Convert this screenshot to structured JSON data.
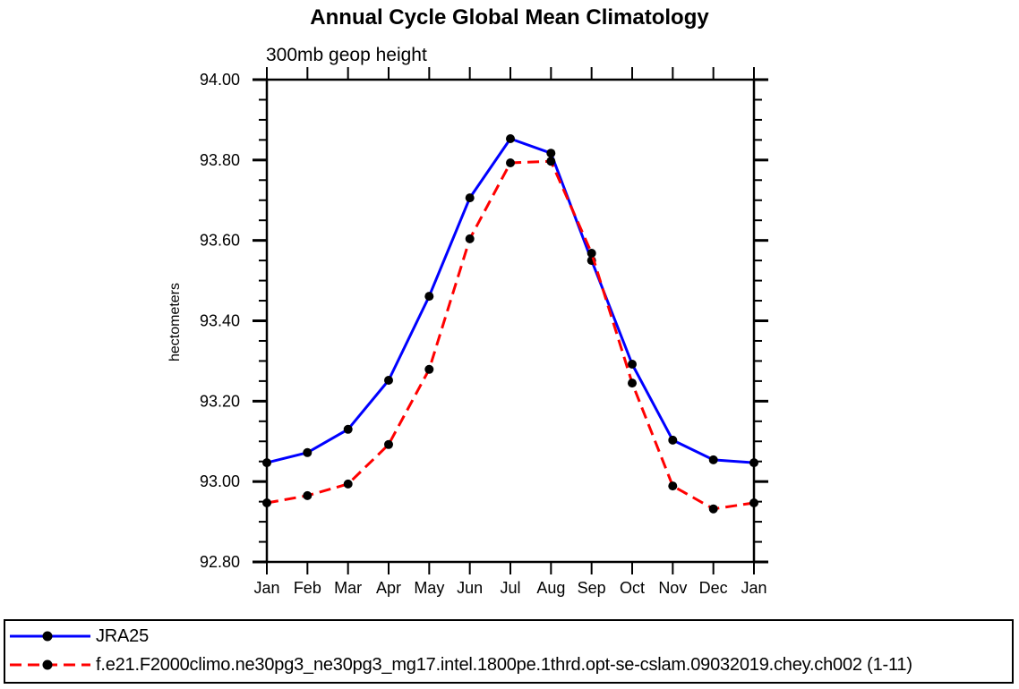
{
  "chart_data": {
    "type": "line",
    "title": "Annual Cycle Global Mean Climatology",
    "subtitle": "300mb geop height",
    "ylabel": "hectometers",
    "xlabel": "",
    "categories": [
      "Jan",
      "Feb",
      "Mar",
      "Apr",
      "May",
      "Jun",
      "Jul",
      "Aug",
      "Sep",
      "Oct",
      "Nov",
      "Dec",
      "Jan"
    ],
    "ylim": [
      92.8,
      94.0
    ],
    "yticks": [
      94.0,
      93.8,
      93.6,
      93.4,
      93.2,
      93.0,
      92.8
    ],
    "ytick_labels": [
      "94.00",
      "93.80",
      "93.60",
      "93.40",
      "93.20",
      "93.00",
      "92.80"
    ],
    "ytick_minor_step": 0.05,
    "grid": false,
    "legend_position": "bottom-box",
    "axis_color": "#000000",
    "background_color": "#ffffff",
    "series": [
      {
        "name": "JRA25",
        "color": "#0000ff",
        "line_style": "solid",
        "dasharray": "none",
        "marker": "circle",
        "marker_color": "#000000",
        "values": [
          93.047,
          93.072,
          93.13,
          93.252,
          93.461,
          93.706,
          93.853,
          93.817,
          93.55,
          93.292,
          93.103,
          93.054,
          93.047
        ]
      },
      {
        "name": "f.e21.F2000climo.ne30pg3_ne30pg3_mg17.intel.1800pe.1thrd.opt-se-cslam.09032019.chey.ch002 (1-11)",
        "color": "#ff0000",
        "line_style": "dashed",
        "dasharray": "13 7",
        "marker": "circle",
        "marker_color": "#000000",
        "values": [
          92.947,
          92.965,
          92.994,
          93.092,
          93.279,
          93.604,
          93.793,
          93.797,
          93.568,
          93.245,
          92.989,
          92.932,
          92.947
        ]
      }
    ]
  }
}
